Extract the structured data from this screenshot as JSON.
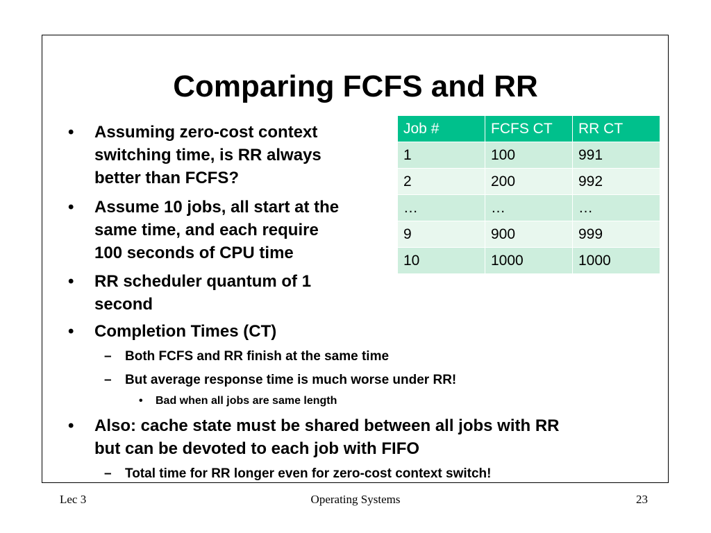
{
  "slide": {
    "title": "Comparing FCFS and RR",
    "bullets": [
      {
        "lines": [
          "Assuming zero-cost context",
          "switching time, is RR always",
          "better than FCFS?"
        ]
      },
      {
        "lines": [
          "Assume 10 jobs, all start at the",
          "same time, and each require",
          "100 seconds of CPU time"
        ]
      },
      {
        "lines": [
          "RR scheduler quantum of 1",
          "second"
        ]
      },
      {
        "lines": [
          "Completion Times (CT)"
        ]
      }
    ],
    "sub_bullets": [
      "Both FCFS and RR finish at the same time",
      "But average response time is much worse under RR!"
    ],
    "sub_sub_bullet": "Bad when all jobs are same length",
    "bullet5": [
      "Also: cache state must be shared between all jobs with RR",
      "but can be devoted to each job with FIFO"
    ],
    "sub_bullet_last": "Total time for RR longer even for zero-cost context switch!",
    "markers": {
      "l1": "•",
      "l2": "–",
      "l3": "•"
    }
  },
  "table": {
    "headers": [
      "Job #",
      "FCFS CT",
      "RR CT"
    ],
    "rows": [
      [
        "1",
        "100",
        "991"
      ],
      [
        "2",
        "200",
        "992"
      ],
      [
        "…",
        "…",
        "…"
      ],
      [
        "9",
        "900",
        "999"
      ],
      [
        "10",
        "1000",
        "1000"
      ]
    ],
    "header_color": "#00c08c",
    "row_colors": [
      "#cdeedd",
      "#e8f7ee"
    ]
  },
  "footer": {
    "left": "Lec 3",
    "center": "Operating Systems",
    "right": "23"
  }
}
